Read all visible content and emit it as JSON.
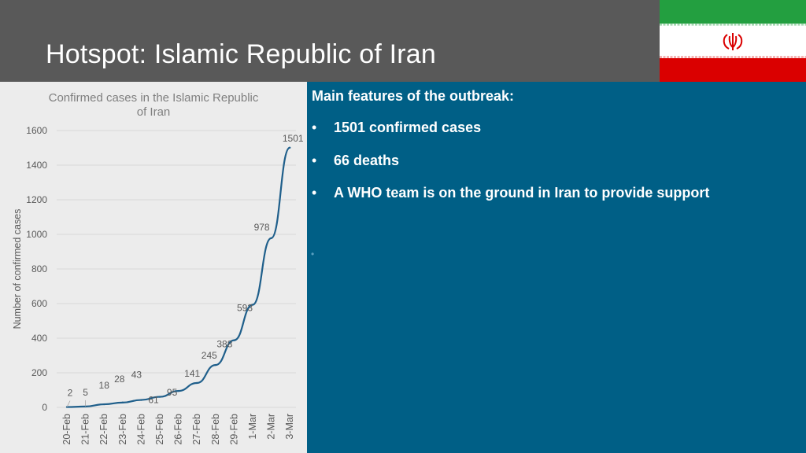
{
  "header": {
    "title": "Hotspot: Islamic Republic of Iran"
  },
  "flag": {
    "name": "iran-flag",
    "colors": {
      "green": "#239f40",
      "white": "#ffffff",
      "red": "#da0000",
      "emblem": "#da0000"
    }
  },
  "info": {
    "heading": "Main features of the outbreak:",
    "bullet_symbol": "•",
    "bullets": [
      "1501 confirmed cases",
      "66 deaths",
      "A WHO team is on the ground in Iran to provide support"
    ]
  },
  "chart_data": {
    "type": "line",
    "title": "Confirmed cases in the Islamic Republic of Iran",
    "title_lines": [
      "Confirmed cases in the Islamic Republic",
      "of Iran"
    ],
    "xlabel": "",
    "ylabel": "Number of confirmed cases",
    "categories": [
      "20-Feb",
      "21-Feb",
      "22-Feb",
      "23-Feb",
      "24-Feb",
      "25-Feb",
      "26-Feb",
      "27-Feb",
      "28-Feb",
      "29-Feb",
      "1-Mar",
      "2-Mar",
      "3-Mar"
    ],
    "series": [
      {
        "values": [
          2,
          5,
          18,
          28,
          43,
          61,
          95,
          141,
          245,
          388,
          593,
          978,
          1501
        ]
      }
    ],
    "y_ticks": [
      0,
      200,
      400,
      600,
      800,
      1000,
      1200,
      1400,
      1600
    ],
    "ylim": [
      0,
      1600
    ],
    "grid": true,
    "data_labels": true,
    "line_color": "#1f5f8b"
  }
}
